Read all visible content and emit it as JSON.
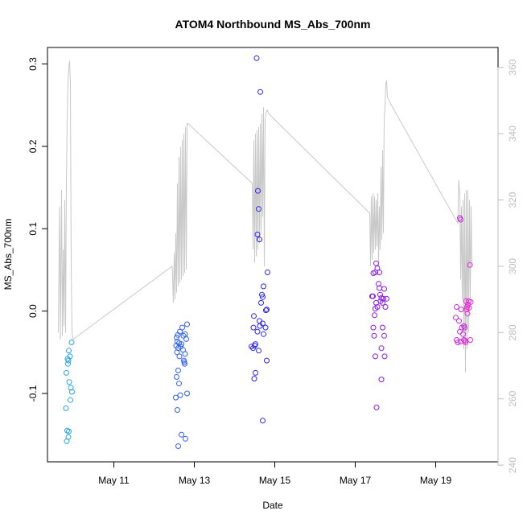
{
  "chart_data": {
    "type": "scatter",
    "title": "ATOM4 Northbound MS_Abs_700nm",
    "xlabel": "Date",
    "ylabel": "MS_Abs_700nm",
    "x_ticks": [
      {
        "day": 11,
        "label": "May 11"
      },
      {
        "day": 13,
        "label": "May 13"
      },
      {
        "day": 15,
        "label": "May 15"
      },
      {
        "day": 17,
        "label": "May 17"
      },
      {
        "day": 19,
        "label": "May 19"
      }
    ],
    "y_ticks": [
      -0.1,
      0.0,
      0.1,
      0.2,
      0.3
    ],
    "y_tick_labels": [
      "-0.1",
      "0.0",
      "0.1",
      "0.2",
      "0.3"
    ],
    "y2_ticks": [
      240,
      260,
      280,
      300,
      320,
      340,
      360
    ],
    "y2_tick_labels": [
      "240",
      "260",
      "280",
      "300",
      "320",
      "340",
      "360"
    ],
    "xlim": [
      9.35,
      20.55
    ],
    "ylim": [
      -0.183,
      0.32
    ],
    "y2lim": [
      241,
      366
    ],
    "grid": false,
    "legend": "none",
    "colors": {
      "secondary_line": "#c8c8c8",
      "right_axis": "#bdbdbd",
      "point_colors": [
        "#29a3e6",
        "#2f63ee",
        "#2b25ee",
        "#8a1be6",
        "#c42ad9",
        "#e62ad2"
      ]
    },
    "point_groups": [
      {
        "color": "#29a3e6",
        "points": [
          [
            9.95,
            -0.038
          ],
          [
            9.88,
            -0.048
          ],
          [
            9.91,
            -0.055
          ],
          [
            9.85,
            -0.058
          ],
          [
            9.87,
            -0.06
          ],
          [
            9.86,
            -0.064
          ],
          [
            9.82,
            -0.075
          ],
          [
            9.89,
            -0.086
          ],
          [
            9.93,
            -0.093
          ],
          [
            9.96,
            -0.098
          ],
          [
            9.92,
            -0.108
          ],
          [
            9.81,
            -0.118
          ],
          [
            9.84,
            -0.145
          ],
          [
            9.88,
            -0.146
          ],
          [
            9.87,
            -0.153
          ],
          [
            9.83,
            -0.158
          ]
        ]
      },
      {
        "color": "#2f63ee",
        "points": [
          [
            12.82,
            -0.016
          ],
          [
            12.7,
            -0.02
          ],
          [
            12.64,
            -0.025
          ],
          [
            12.77,
            -0.028
          ],
          [
            12.59,
            -0.029
          ],
          [
            12.73,
            -0.03
          ],
          [
            12.56,
            -0.032
          ],
          [
            12.8,
            -0.034
          ],
          [
            12.58,
            -0.037
          ],
          [
            12.62,
            -0.039
          ],
          [
            12.68,
            -0.04
          ],
          [
            12.55,
            -0.042
          ],
          [
            12.66,
            -0.043
          ],
          [
            12.6,
            -0.045
          ],
          [
            12.72,
            -0.047
          ],
          [
            12.57,
            -0.05
          ],
          [
            12.77,
            -0.052
          ],
          [
            12.63,
            -0.055
          ],
          [
            12.74,
            -0.06
          ],
          [
            12.75,
            -0.062
          ],
          [
            12.76,
            -0.064
          ],
          [
            12.6,
            -0.072
          ],
          [
            12.56,
            -0.08
          ],
          [
            12.62,
            -0.088
          ],
          [
            12.82,
            -0.1
          ],
          [
            12.65,
            -0.102
          ],
          [
            12.54,
            -0.105
          ],
          [
            12.58,
            -0.12
          ],
          [
            12.68,
            -0.15
          ],
          [
            12.78,
            -0.155
          ],
          [
            12.6,
            -0.164
          ]
        ]
      },
      {
        "color": "#2b25ee",
        "points": [
          [
            14.55,
            0.307
          ],
          [
            14.64,
            0.266
          ],
          [
            14.58,
            0.146
          ],
          [
            14.6,
            0.124
          ],
          [
            14.57,
            0.093
          ],
          [
            14.62,
            0.087
          ],
          [
            14.82,
            0.047
          ],
          [
            14.72,
            0.03
          ],
          [
            14.68,
            0.02
          ],
          [
            14.7,
            0.017
          ],
          [
            14.66,
            0.01
          ],
          [
            14.8,
            0.002
          ],
          [
            14.78,
            0.001
          ],
          [
            14.48,
            -0.006
          ],
          [
            14.62,
            -0.012
          ],
          [
            14.7,
            -0.015
          ],
          [
            14.63,
            -0.018
          ],
          [
            14.47,
            -0.02
          ],
          [
            14.77,
            -0.02
          ],
          [
            14.57,
            -0.025
          ],
          [
            14.72,
            -0.028
          ],
          [
            14.52,
            -0.04
          ],
          [
            14.5,
            -0.042
          ],
          [
            14.42,
            -0.043
          ],
          [
            14.46,
            -0.045
          ],
          [
            14.6,
            -0.048
          ],
          [
            14.8,
            -0.06
          ],
          [
            14.52,
            -0.075
          ],
          [
            14.49,
            -0.082
          ],
          [
            14.7,
            -0.133
          ]
        ]
      },
      {
        "color": "#8a1be6",
        "points": [
          [
            17.52,
            0.058
          ],
          [
            17.55,
            0.052
          ],
          [
            17.5,
            0.047
          ],
          [
            17.6,
            0.047
          ],
          [
            17.45,
            0.046
          ],
          [
            17.58,
            0.033
          ],
          [
            17.6,
            0.028
          ],
          [
            17.72,
            0.027
          ],
          [
            17.62,
            0.02
          ],
          [
            17.42,
            0.018
          ],
          [
            17.44,
            0.018
          ],
          [
            17.65,
            0.016
          ],
          [
            17.7,
            0.015
          ],
          [
            17.63,
            0.012
          ],
          [
            17.52,
            0.01
          ],
          [
            17.68,
            0.01
          ],
          [
            17.78,
            0.015
          ],
          [
            17.55,
            0.005
          ],
          [
            17.5,
            0.003
          ],
          [
            17.75,
            0.005
          ],
          [
            17.48,
            -0.005
          ],
          [
            17.45,
            -0.02
          ],
          [
            17.68,
            -0.02
          ],
          [
            17.72,
            -0.03
          ],
          [
            17.47,
            -0.03
          ],
          [
            17.65,
            -0.045
          ],
          [
            17.5,
            -0.055
          ],
          [
            17.73,
            -0.055
          ],
          [
            17.65,
            -0.083
          ],
          [
            17.53,
            -0.117
          ]
        ]
      },
      {
        "color": "#c42ad9",
        "points": [
          [
            19.6,
            0.113
          ],
          [
            19.62,
            0.111
          ],
          [
            19.52,
            0.005
          ],
          [
            19.63,
            0.002
          ],
          [
            19.5,
            -0.008
          ],
          [
            19.58,
            -0.012
          ],
          [
            19.7,
            -0.018
          ],
          [
            19.65,
            -0.02
          ],
          [
            19.72,
            -0.02
          ],
          [
            19.6,
            -0.025
          ],
          [
            19.68,
            -0.028
          ],
          [
            19.52,
            -0.035
          ],
          [
            19.55,
            -0.038
          ],
          [
            19.7,
            -0.035
          ],
          [
            19.62,
            -0.037
          ]
        ]
      },
      {
        "color": "#e62ad2",
        "points": [
          [
            19.85,
            0.056
          ],
          [
            19.82,
            0.012
          ],
          [
            19.75,
            0.012
          ],
          [
            19.87,
            0.011
          ],
          [
            19.8,
            0.008
          ],
          [
            19.78,
            0.005
          ],
          [
            19.83,
            0.004
          ],
          [
            19.77,
            0.002
          ],
          [
            19.79,
            -0.003
          ],
          [
            19.86,
            -0.035
          ],
          [
            19.73,
            -0.036
          ],
          [
            19.74,
            -0.038
          ]
        ]
      }
    ],
    "secondary_line": {
      "axis": "right",
      "points": [
        [
          9.62,
          280
        ],
        [
          9.65,
          318
        ],
        [
          9.67,
          278
        ],
        [
          9.7,
          323
        ],
        [
          9.72,
          279
        ],
        [
          9.74,
          305
        ],
        [
          9.76,
          282
        ],
        [
          9.78,
          320
        ],
        [
          9.8,
          280
        ],
        [
          9.82,
          325
        ],
        [
          9.84,
          345
        ],
        [
          9.86,
          355
        ],
        [
          9.88,
          360
        ],
        [
          9.9,
          362
        ],
        [
          9.92,
          355
        ],
        [
          9.94,
          300
        ],
        [
          9.96,
          280
        ],
        [
          9.99,
          278
        ],
        [
          12.45,
          300
        ],
        [
          12.48,
          289
        ],
        [
          12.5,
          304
        ],
        [
          12.52,
          290
        ],
        [
          12.54,
          310
        ],
        [
          12.56,
          292
        ],
        [
          12.58,
          325
        ],
        [
          12.6,
          294
        ],
        [
          12.62,
          333
        ],
        [
          12.64,
          295
        ],
        [
          12.66,
          336
        ],
        [
          12.68,
          296
        ],
        [
          12.7,
          338
        ],
        [
          12.72,
          297
        ],
        [
          12.74,
          340
        ],
        [
          12.76,
          298
        ],
        [
          12.78,
          342
        ],
        [
          12.8,
          299
        ],
        [
          12.82,
          343
        ],
        [
          12.85,
          343
        ],
        [
          14.44,
          325
        ],
        [
          14.46,
          305
        ],
        [
          14.48,
          338
        ],
        [
          14.5,
          301
        ],
        [
          14.52,
          340
        ],
        [
          14.54,
          303
        ],
        [
          14.56,
          341
        ],
        [
          14.58,
          305
        ],
        [
          14.6,
          342
        ],
        [
          14.62,
          307
        ],
        [
          14.64,
          343
        ],
        [
          14.66,
          310
        ],
        [
          14.68,
          346
        ],
        [
          14.7,
          315
        ],
        [
          14.72,
          348
        ],
        [
          14.74,
          300
        ],
        [
          14.76,
          344
        ],
        [
          14.78,
          346
        ],
        [
          14.8,
          347
        ],
        [
          14.82,
          347
        ],
        [
          14.85,
          346
        ],
        [
          17.36,
          316
        ],
        [
          17.38,
          300
        ],
        [
          17.4,
          321
        ],
        [
          17.42,
          302
        ],
        [
          17.44,
          322
        ],
        [
          17.46,
          304
        ],
        [
          17.48,
          321
        ],
        [
          17.5,
          305
        ],
        [
          17.52,
          320
        ],
        [
          17.54,
          306
        ],
        [
          17.56,
          322
        ],
        [
          17.58,
          300
        ],
        [
          17.6,
          318
        ],
        [
          17.62,
          305
        ],
        [
          17.64,
          330
        ],
        [
          17.66,
          308
        ],
        [
          17.68,
          335
        ],
        [
          17.7,
          310
        ],
        [
          17.72,
          345
        ],
        [
          17.74,
          348
        ],
        [
          17.76,
          355
        ],
        [
          17.78,
          356
        ],
        [
          17.8,
          351
        ],
        [
          17.84,
          350
        ],
        [
          17.88,
          349
        ],
        [
          19.55,
          313
        ],
        [
          19.57,
          326
        ],
        [
          19.6,
          322
        ],
        [
          19.62,
          296
        ],
        [
          19.64,
          318
        ],
        [
          19.66,
          290
        ],
        [
          19.68,
          320
        ],
        [
          19.7,
          275
        ],
        [
          19.72,
          322
        ],
        [
          19.74,
          268
        ],
        [
          19.76,
          323
        ],
        [
          19.78,
          275
        ],
        [
          19.8,
          323
        ],
        [
          19.82,
          280
        ],
        [
          19.84,
          320
        ],
        [
          19.86,
          290
        ],
        [
          19.88,
          318
        ],
        [
          19.9,
          300
        ]
      ]
    }
  }
}
